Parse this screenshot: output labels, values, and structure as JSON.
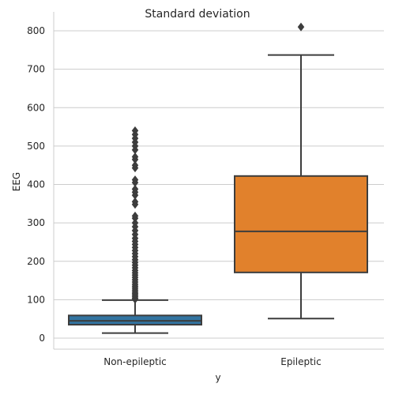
{
  "chart_data": {
    "type": "box",
    "title": "Standard deviation",
    "xlabel": "y",
    "ylabel": "EEG",
    "ylim": [
      -30,
      850
    ],
    "yticks": [
      0,
      100,
      200,
      300,
      400,
      500,
      600,
      700,
      800
    ],
    "grid": "horizontal",
    "categories": [
      "Non-epileptic",
      "Epileptic"
    ],
    "boxes": [
      {
        "category": "Non-epileptic",
        "color": "#3274a1",
        "whisker_low": 13,
        "q1": 35,
        "median": 45,
        "q3": 59,
        "whisker_high": 99,
        "outliers": [
          101,
          104,
          108,
          112,
          116,
          120,
          125,
          130,
          135,
          140,
          146,
          152,
          158,
          164,
          170,
          176,
          183,
          190,
          197,
          204,
          212,
          220,
          228,
          236,
          244,
          252,
          260,
          270,
          280,
          290,
          300,
          312,
          318,
          348,
          355,
          372,
          380,
          388,
          405,
          412,
          443,
          450,
          465,
          472,
          490,
          500,
          510,
          520,
          530,
          540
        ]
      },
      {
        "category": "Epileptic",
        "color": "#e1812c",
        "whisker_low": 51,
        "q1": 171,
        "median": 278,
        "q3": 422,
        "whisker_high": 737,
        "outliers": [
          810
        ]
      }
    ]
  }
}
